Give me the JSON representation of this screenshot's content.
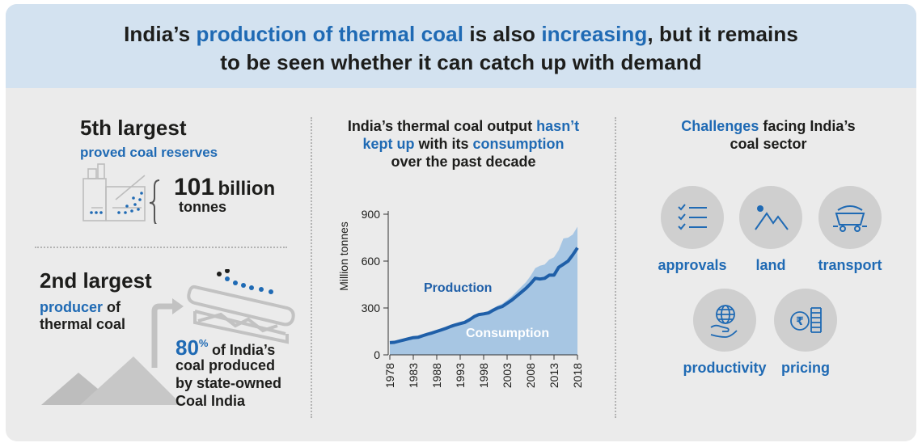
{
  "header": {
    "line1": [
      {
        "text": "India’s ",
        "color": "dark"
      },
      {
        "text": "production of thermal coal",
        "color": "blue"
      },
      {
        "text": " is also ",
        "color": "dark"
      },
      {
        "text": "increasing",
        "color": "blue"
      },
      {
        "text": ", but it remains",
        "color": "dark"
      }
    ],
    "line2": "to be seen whether it can catch up with demand"
  },
  "reserves": {
    "rank": "5th largest",
    "label": "proved coal reserves",
    "amount_num": "101",
    "amount_unit": "billion",
    "amount_unit2": "tonnes"
  },
  "producer": {
    "rank": "2nd largest",
    "label_blue": "producer",
    "label_of": " of",
    "label2": "thermal coal",
    "pct_num": "80",
    "pct_sign": "%",
    "pct_text1": "of India’s",
    "pct_text2": "coal produced",
    "pct_text3": "by state-owned",
    "pct_text4": "Coal India"
  },
  "chart_title": {
    "line1_a": "India’s thermal coal output ",
    "line1_b": "hasn’t",
    "line2_a": "kept up",
    "line2_b": " with its ",
    "line2_c": "consumption",
    "line3": "over the past decade"
  },
  "challenges": {
    "title_blue": "Challenges",
    "title_rest": " facing India’s",
    "title_line2": "coal sector",
    "items": [
      {
        "label": "approvals",
        "icon": "checklist-icon"
      },
      {
        "label": "land",
        "icon": "mountain-icon"
      },
      {
        "label": "transport",
        "icon": "coal-wagon-icon"
      },
      {
        "label": "productivity",
        "icon": "globe-hand-icon"
      },
      {
        "label": "pricing",
        "icon": "rupee-coins-icon"
      }
    ]
  },
  "colors": {
    "accent_blue": "#1f6ab4",
    "production_line": "#1f5fa8",
    "consumption_area": "#a7c6e3",
    "header_bg": "#d3e2f0",
    "panel_bg": "#ebebeb",
    "icon_grey": "#cfcfcf"
  },
  "chart_data": {
    "type": "area",
    "title": "India’s thermal coal output hasn’t kept up with its consumption over the past decade",
    "ylabel": "Million tonnes",
    "xlabel": "",
    "ylim": [
      0,
      900
    ],
    "yticks": [
      0,
      300,
      600,
      900
    ],
    "xticks": [
      1978,
      1983,
      1988,
      1993,
      1998,
      2003,
      2008,
      2013,
      2018
    ],
    "x": [
      1978,
      1979,
      1980,
      1981,
      1982,
      1983,
      1984,
      1985,
      1986,
      1987,
      1988,
      1989,
      1990,
      1991,
      1992,
      1993,
      1994,
      1995,
      1996,
      1997,
      1998,
      1999,
      2000,
      2001,
      2002,
      2003,
      2004,
      2005,
      2006,
      2007,
      2008,
      2009,
      2010,
      2011,
      2012,
      2013,
      2014,
      2015,
      2016,
      2017,
      2018
    ],
    "series": [
      {
        "name": "Production",
        "style": "line",
        "label_text": "Production",
        "values": [
          78,
          80,
          88,
          95,
          103,
          110,
          112,
          122,
          132,
          140,
          150,
          160,
          170,
          182,
          192,
          200,
          208,
          225,
          245,
          258,
          262,
          268,
          285,
          300,
          310,
          330,
          350,
          375,
          400,
          425,
          455,
          490,
          485,
          490,
          510,
          510,
          560,
          580,
          600,
          640,
          685
        ]
      },
      {
        "name": "Consumption",
        "style": "area",
        "label_text": "Consumption",
        "values": [
          80,
          82,
          90,
          97,
          105,
          112,
          115,
          125,
          135,
          143,
          153,
          163,
          174,
          186,
          196,
          205,
          214,
          232,
          252,
          265,
          272,
          280,
          298,
          315,
          328,
          350,
          375,
          405,
          435,
          465,
          505,
          555,
          570,
          578,
          610,
          625,
          670,
          745,
          750,
          770,
          820
        ]
      }
    ]
  }
}
